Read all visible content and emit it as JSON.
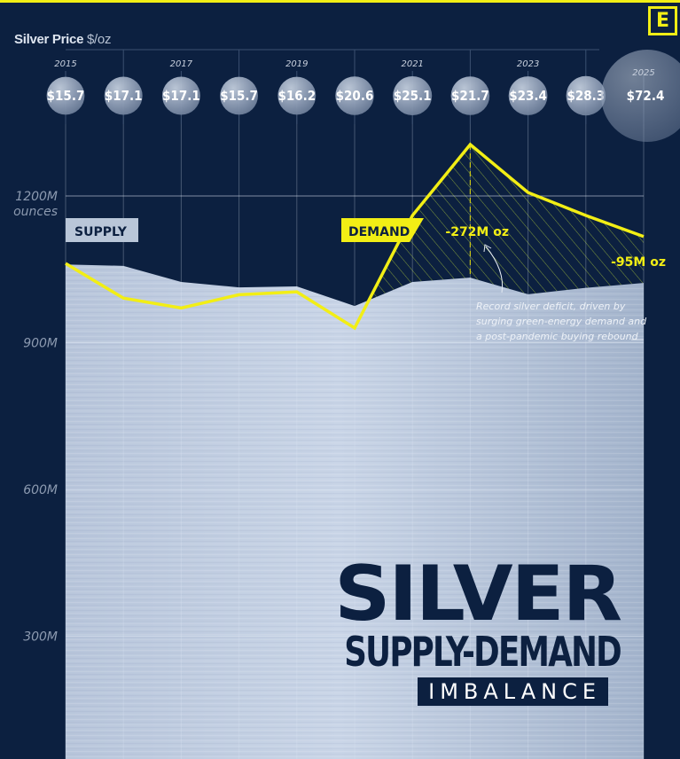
{
  "brand": {
    "logo": "E",
    "accent": "#f2ee15",
    "background": "#0c2040"
  },
  "price_header": {
    "title": "Silver Price",
    "unit": "$/oz"
  },
  "title": {
    "line1": "SILVER",
    "line2": "SUPPLY-DEMAND",
    "line3": "IMBALANCE"
  },
  "chart_data": {
    "type": "area",
    "title": "Silver Supply-Demand Imbalance",
    "xlabel": "",
    "ylabel": "ounces",
    "ylim": [
      0,
      1200
    ],
    "grid": true,
    "x": [
      2015,
      2016,
      2017,
      2018,
      2019,
      2020,
      2021,
      2022,
      2023,
      2024,
      2025
    ],
    "year_labels": [
      "2015",
      "2017",
      "2019",
      "2021",
      "2023",
      "2025"
    ],
    "y_ticks": [
      {
        "value": 1200,
        "label": "1200M"
      },
      {
        "value": 900,
        "label": "900M"
      },
      {
        "value": 600,
        "label": "600M"
      },
      {
        "value": 300,
        "label": "300M"
      }
    ],
    "y_unit_label": "ounces",
    "series": [
      {
        "name": "SUPPLY",
        "type": "area",
        "color": "#b9c7dc",
        "values": [
          1060,
          1057,
          1024,
          1013,
          1015,
          975,
          1024,
          1033,
          999,
          1012,
          1022
        ]
      },
      {
        "name": "DEMAND",
        "type": "line",
        "color": "#f2ee15",
        "values": [
          1062,
          991,
          971,
          998,
          1004,
          930,
          1160,
          1305,
          1207,
          1160,
          1117
        ]
      }
    ],
    "prices": [
      {
        "year": 2015,
        "label": "$15.7",
        "value": 15.7
      },
      {
        "year": 2016,
        "label": "$17.1",
        "value": 17.1
      },
      {
        "year": 2017,
        "label": "$17.1",
        "value": 17.1
      },
      {
        "year": 2018,
        "label": "$15.7",
        "value": 15.7
      },
      {
        "year": 2019,
        "label": "$16.2",
        "value": 16.2
      },
      {
        "year": 2020,
        "label": "$20.6",
        "value": 20.6
      },
      {
        "year": 2021,
        "label": "$25.1",
        "value": 25.1
      },
      {
        "year": 2022,
        "label": "$21.7",
        "value": 21.7
      },
      {
        "year": 2023,
        "label": "$23.4",
        "value": 23.4
      },
      {
        "year": 2024,
        "label": "$28.3",
        "value": 28.3
      },
      {
        "year": 2025,
        "label": "$72.4",
        "value": 72.4
      }
    ],
    "annotations": [
      {
        "year": 2022,
        "text": "-272M oz"
      },
      {
        "year": 2025,
        "text": "-95M oz"
      },
      {
        "year": 2022,
        "lines": [
          "Record silver deficit, driven by",
          "surging green-energy demand and",
          "a post-pandemic buying rebound"
        ]
      }
    ],
    "legend": {
      "supply": "SUPPLY",
      "demand": "DEMAND"
    }
  }
}
